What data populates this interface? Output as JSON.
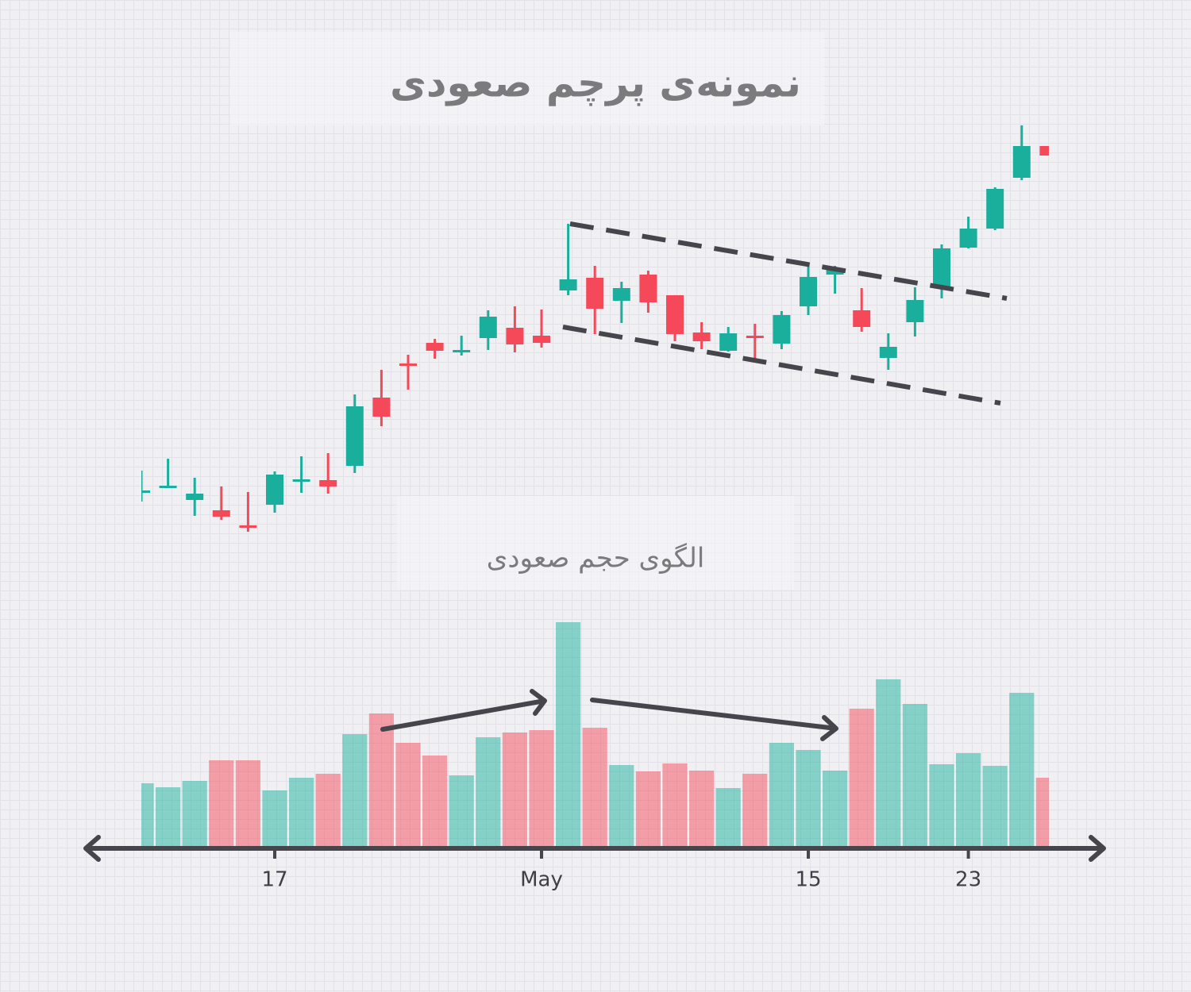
{
  "chart_data": {
    "type": "candlestick",
    "title": "نمونه‌ی پرچم صعودی",
    "volume_title": "الگوی حجم صعودی",
    "categories": [
      null,
      null,
      null,
      null,
      null,
      "17",
      null,
      null,
      null,
      null,
      null,
      null,
      null,
      null,
      null,
      "May",
      null,
      null,
      null,
      null,
      null,
      null,
      null,
      null,
      null,
      "15",
      null,
      null,
      null,
      null,
      null,
      "23",
      null,
      null,
      null
    ],
    "open": [
      80,
      87,
      70,
      57,
      38,
      64,
      95,
      95,
      113,
      199,
      242,
      268,
      256,
      274,
      287,
      277,
      334,
      350,
      321,
      354,
      328,
      281,
      258,
      277,
      267,
      314,
      354,
      309,
      249,
      294,
      337,
      388,
      412,
      476,
      516
    ],
    "close": [
      82,
      88,
      78,
      49,
      37,
      102,
      96,
      87,
      188,
      175,
      239,
      258,
      259,
      301,
      266,
      268,
      348,
      311,
      337,
      319,
      279,
      270,
      280,
      275,
      303,
      351,
      362,
      288,
      263,
      322,
      387,
      412,
      462,
      516,
      504
    ],
    "high": [
      107,
      122,
      98,
      87,
      80,
      106,
      125,
      129,
      203,
      234,
      253,
      273,
      277,
      309,
      314,
      310,
      418,
      365,
      345,
      359,
      328,
      294,
      288,
      292,
      308,
      366,
      365,
      337,
      280,
      338,
      392,
      427,
      464,
      542,
      516
    ],
    "low": [
      68,
      87,
      50,
      45,
      30,
      54,
      79,
      78,
      104,
      163,
      209,
      248,
      252,
      259,
      256,
      262,
      328,
      279,
      293,
      306,
      270,
      260,
      257,
      243,
      260,
      303,
      330,
      282,
      234,
      276,
      324,
      387,
      410,
      473,
      504
    ],
    "volume": [
      79,
      74,
      82,
      108,
      108,
      70,
      86,
      91,
      141,
      167,
      130,
      114,
      89,
      137,
      143,
      146,
      282,
      149,
      102,
      94,
      104,
      95,
      73,
      91,
      130,
      121,
      95,
      173,
      210,
      179,
      103,
      117,
      101,
      193,
      86
    ],
    "ylim": [
      0,
      600
    ],
    "volume_ylim": [
      0,
      300
    ],
    "up_color": "#1aaf9c",
    "down_color": "#f5495a"
  }
}
